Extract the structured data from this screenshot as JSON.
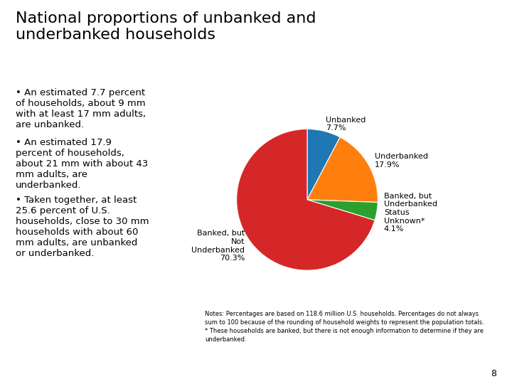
{
  "chart_data": {
    "type": "pie",
    "title": "National proportions of unbanked and\nunderbanked households",
    "categories": [
      "Unbanked\n7.7%",
      "Underbanked\n17.9%",
      "Banked, but\nUnderbanked\nStatus\nUnknown*\n4.1%",
      "Banked, but\nNot\nUnderbanked\n70.3%"
    ],
    "values": [
      7.7,
      17.9,
      4.1,
      70.3
    ],
    "annotations": [
      "• An estimated 7.7 percent\nof households, about 9 mm\nwith at least 17 mm adults,\nare unbanked.",
      "• An estimated 17.9\npercent of households,\nabout 21 mm with about 43\nmm adults, are\nunderbanked.",
      "• Taken together, at least\n25.6 percent of U.S.\nhouseholds, close to 30 mm\nhouseholds with about 60\nmm adults, are unbanked\nor underbanked.",
      "Notes: Percentages are based on 118.6 million U.S. households. Percentages do not always\nsum to 100 because of the rounding of household weights to represent the population totals.\n* These households are banked, but there is not enough information to determine if they are\nunderbanked.",
      "8"
    ]
  }
}
